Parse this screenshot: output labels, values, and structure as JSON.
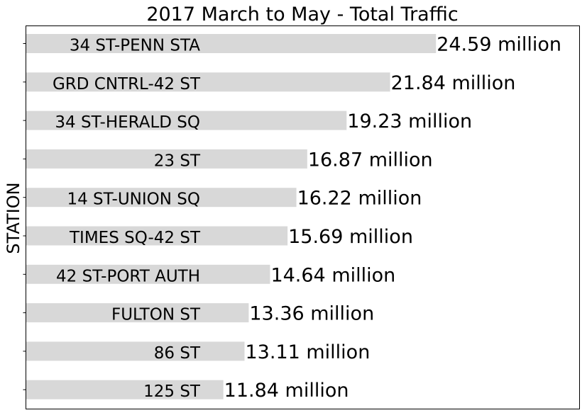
{
  "chart_data": {
    "type": "bar",
    "orientation": "horizontal",
    "title": "2017 March to May - Total Traffic",
    "xlabel": "",
    "ylabel": "STATION",
    "categories": [
      "34 ST-PENN STA",
      "GRD CNTRL-42 ST",
      "34 ST-HERALD SQ",
      "23 ST",
      "14 ST-UNION SQ",
      "TIMES SQ-42 ST",
      "42 ST-PORT AUTH",
      "FULTON ST",
      "86 ST",
      "125 ST"
    ],
    "values": [
      24.59,
      21.84,
      19.23,
      16.87,
      16.22,
      15.69,
      14.64,
      13.36,
      13.11,
      11.84
    ],
    "value_labels": [
      "24.59 million",
      "21.84 million",
      "19.23 million",
      "16.87 million",
      "16.22 million",
      "15.69 million",
      "14.64 million",
      "13.36 million",
      "13.11 million",
      "11.84 million"
    ],
    "value_unit": "million",
    "xlim": [
      0,
      33.2
    ],
    "grid": false,
    "legend": "none",
    "x_ticks_visible": false,
    "category_labels_inside_bars": true,
    "colors": {
      "bar": "#d8d8d8",
      "text": "#000000",
      "axes": "#000000",
      "background": "#ffffff"
    }
  }
}
